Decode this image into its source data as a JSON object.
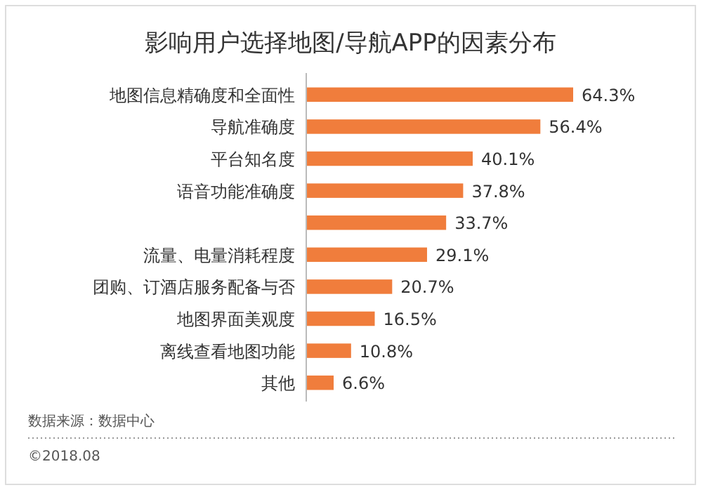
{
  "chart_data": {
    "type": "bar",
    "orientation": "horizontal",
    "title": "影响用户选择地图/导航APP的因素分布",
    "categories": [
      "地图信息精确度和全面性",
      "导航准确度",
      "平台知名度",
      "语音功能准确度",
      null,
      "流量、电量消耗程度",
      "团购、订酒店服务配备与否",
      "地图界面美观度",
      "离线查看地图功能",
      "其他"
    ],
    "values": [
      64.3,
      56.4,
      40.1,
      37.8,
      33.7,
      29.1,
      20.7,
      16.5,
      10.8,
      6.6
    ],
    "value_labels": [
      "64.3%",
      "56.4%",
      "40.1%",
      "37.8%",
      "33.7%",
      "29.1%",
      "20.7%",
      "16.5%",
      "10.8%",
      "6.6%"
    ],
    "color": "#f07d3c",
    "tick_labels": "y",
    "annotations": [
      "数据来源：数据中心",
      "©2018.08"
    ]
  }
}
